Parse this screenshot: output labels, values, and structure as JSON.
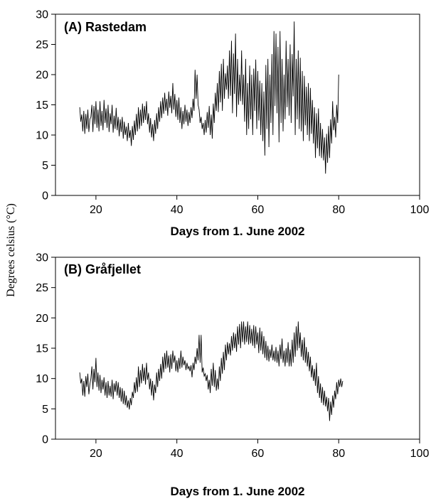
{
  "figure": {
    "ylabel": "Degrees celsius (°C)"
  },
  "chart_data": [
    {
      "type": "line",
      "title": "(A)  Rastedam",
      "xlabel": "Days from 1. June 2002",
      "ylabel": "Degrees celsius (°C)",
      "xlim": [
        10,
        100
      ],
      "ylim": [
        0,
        30
      ],
      "xticks": [
        20,
        40,
        60,
        80,
        100
      ],
      "yticks": [
        0,
        5,
        10,
        15,
        20,
        25,
        30
      ],
      "grid": false,
      "series": [
        {
          "x_start": 16,
          "x_step": 0.25,
          "values": [
            14.6,
            12.2,
            13.4,
            10.6,
            14.0,
            10.2,
            13.5,
            11.0,
            14.2,
            10.5,
            12.6,
            13.0,
            15.0,
            10.5,
            14.8,
            11.8,
            15.6,
            11.2,
            14.2,
            10.6,
            15.6,
            11.5,
            14.0,
            10.8,
            15.8,
            12.0,
            14.4,
            11.2,
            15.0,
            10.5,
            13.6,
            11.8,
            15.0,
            10.4,
            13.2,
            11.0,
            14.5,
            10.8,
            13.0,
            9.8,
            12.6,
            10.5,
            13.0,
            9.4,
            12.2,
            10.0,
            11.4,
            9.0,
            12.0,
            9.5,
            10.8,
            8.2,
            11.5,
            9.2,
            12.4,
            10.0,
            13.5,
            10.6,
            14.6,
            11.0,
            14.2,
            11.5,
            15.2,
            12.0,
            14.8,
            12.5,
            15.6,
            11.8,
            13.6,
            10.4,
            12.8,
            9.6,
            11.8,
            9.0,
            12.5,
            10.2,
            13.6,
            11.0,
            14.6,
            12.2,
            15.6,
            12.8,
            16.2,
            13.5,
            17.0,
            14.0,
            16.0,
            13.2,
            17.2,
            14.5,
            16.5,
            13.6,
            18.6,
            14.2,
            16.8,
            13.0,
            15.8,
            12.5,
            16.2,
            12.0,
            14.6,
            11.0,
            14.0,
            11.8,
            15.0,
            12.2,
            14.2,
            11.5,
            13.8,
            12.0,
            14.6,
            12.8,
            16.0,
            14.0,
            20.8,
            16.0,
            20.0,
            15.0,
            14.2,
            12.0,
            13.0,
            11.0,
            12.0,
            10.0,
            12.5,
            10.4,
            13.8,
            11.2,
            14.8,
            10.0,
            13.4,
            9.4,
            15.2,
            12.0,
            17.0,
            14.0,
            18.6,
            13.8,
            20.6,
            15.4,
            21.8,
            14.0,
            22.6,
            16.0,
            20.2,
            17.5,
            21.5,
            16.0,
            24.0,
            16.5,
            25.6,
            13.6,
            23.5,
            16.8,
            26.8,
            13.0,
            22.6,
            15.0,
            20.0,
            15.6,
            24.0,
            15.0,
            20.0,
            12.2,
            22.6,
            10.0,
            18.6,
            11.0,
            21.5,
            12.6,
            20.0,
            10.0,
            21.0,
            14.0,
            22.5,
            11.0,
            20.6,
            12.4,
            19.0,
            10.0,
            18.6,
            9.0,
            17.2,
            6.6,
            21.6,
            11.0,
            22.6,
            8.0,
            20.0,
            12.0,
            23.4,
            10.0,
            27.2,
            14.8,
            26.8,
            13.6,
            24.6,
            8.8,
            27.2,
            12.0,
            22.6,
            10.6,
            20.0,
            12.6,
            25.6,
            14.6,
            22.6,
            13.2,
            25.0,
            12.0,
            23.4,
            16.4,
            28.8,
            10.0,
            22.6,
            12.6,
            24.0,
            11.0,
            22.8,
            10.6,
            20.6,
            9.0,
            19.8,
            11.6,
            18.0,
            10.0,
            18.6,
            9.0,
            17.8,
            10.2,
            15.8,
            8.6,
            14.6,
            6.2,
            13.6,
            7.8,
            14.4,
            6.5,
            12.0,
            6.2,
            11.0,
            5.8,
            9.6,
            3.6,
            10.2,
            5.4,
            11.5,
            6.2,
            12.6,
            8.6,
            15.6,
            10.8,
            13.0,
            9.6,
            15.0,
            12.0,
            20.0
          ]
        }
      ]
    },
    {
      "type": "line",
      "title": "(B)  Gråfjellet",
      "xlabel": "Days from 1. June 2002",
      "ylabel": "Degrees celsius (°C)",
      "xlim": [
        10,
        100
      ],
      "ylim": [
        0,
        30
      ],
      "xticks": [
        20,
        40,
        60,
        80,
        100
      ],
      "yticks": [
        0,
        5,
        10,
        15,
        20,
        25,
        30
      ],
      "grid": false,
      "series": [
        {
          "x_start": 16,
          "x_step": 0.25,
          "values": [
            11.0,
            9.2,
            10.0,
            7.2,
            9.6,
            7.0,
            10.4,
            8.6,
            10.8,
            7.4,
            9.0,
            10.0,
            12.0,
            8.2,
            11.6,
            9.4,
            13.4,
            8.6,
            11.0,
            8.0,
            10.6,
            7.6,
            9.8,
            8.2,
            10.2,
            7.2,
            9.4,
            6.8,
            9.6,
            7.2,
            8.8,
            7.0,
            9.8,
            6.6,
            9.2,
            7.8,
            9.6,
            7.2,
            9.4,
            6.8,
            8.6,
            6.2,
            8.4,
            5.8,
            8.0,
            5.6,
            7.2,
            5.2,
            6.4,
            4.9,
            6.8,
            5.6,
            7.8,
            6.8,
            9.4,
            7.6,
            10.2,
            7.8,
            12.0,
            8.6,
            11.4,
            9.2,
            12.4,
            9.6,
            11.8,
            9.0,
            12.6,
            9.8,
            11.0,
            8.2,
            10.0,
            7.2,
            9.6,
            6.4,
            9.0,
            7.6,
            11.0,
            8.6,
            11.6,
            9.6,
            12.4,
            10.0,
            13.6,
            11.0,
            14.2,
            11.6,
            14.6,
            11.8,
            13.8,
            11.0,
            14.0,
            11.6,
            14.6,
            12.6,
            13.8,
            11.2,
            13.0,
            11.0,
            13.4,
            11.6,
            14.6,
            11.8,
            13.6,
            12.2,
            13.0,
            11.4,
            12.6,
            11.6,
            12.0,
            11.2,
            12.2,
            10.2,
            12.6,
            11.4,
            13.6,
            12.4,
            15.0,
            13.0,
            17.2,
            12.6,
            17.2,
            11.0,
            11.8,
            10.4,
            10.8,
            9.6,
            10.6,
            8.2,
            9.8,
            7.6,
            11.6,
            8.8,
            12.6,
            8.6,
            11.4,
            8.0,
            10.0,
            8.2,
            12.0,
            9.6,
            13.4,
            10.8,
            14.4,
            11.4,
            15.6,
            13.0,
            16.0,
            14.0,
            15.8,
            13.8,
            17.0,
            14.6,
            17.6,
            15.0,
            17.4,
            14.4,
            18.6,
            15.6,
            19.0,
            15.0,
            19.4,
            16.0,
            19.4,
            15.6,
            18.6,
            16.0,
            19.4,
            15.6,
            18.8,
            15.8,
            18.2,
            15.4,
            18.8,
            15.0,
            18.6,
            15.6,
            17.6,
            14.2,
            18.4,
            14.6,
            17.8,
            14.0,
            17.0,
            13.4,
            16.2,
            13.0,
            15.4,
            12.8,
            14.8,
            13.4,
            15.6,
            13.0,
            14.6,
            12.8,
            15.2,
            12.6,
            14.6,
            12.0,
            15.6,
            13.2,
            16.6,
            12.6,
            14.6,
            12.0,
            15.0,
            12.6,
            16.0,
            12.0,
            14.8,
            12.0,
            16.4,
            12.6,
            17.6,
            13.6,
            18.6,
            14.6,
            19.4,
            15.0,
            17.6,
            13.6,
            16.4,
            13.0,
            16.8,
            12.6,
            15.2,
            12.0,
            14.4,
            11.2,
            13.6,
            10.2,
            12.2,
            9.6,
            11.6,
            8.8,
            12.6,
            7.6,
            10.4,
            6.8,
            9.2,
            6.0,
            8.6,
            5.6,
            8.0,
            5.4,
            7.0,
            4.6,
            6.8,
            3.0,
            6.2,
            4.0,
            7.2,
            5.2,
            8.0,
            6.6,
            9.4,
            7.4,
            9.8,
            8.6,
            10.0,
            8.6,
            9.6
          ]
        }
      ]
    }
  ]
}
